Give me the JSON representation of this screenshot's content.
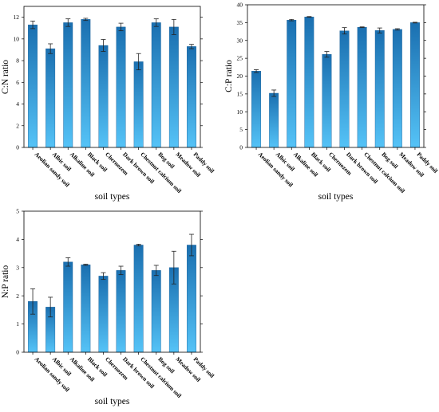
{
  "colors": {
    "bar_top": "#1a6fb0",
    "bar_bottom": "#55c3f7",
    "axis": "#000000"
  },
  "chart_data": [
    {
      "type": "bar",
      "categories": [
        "Aeolian sandy soil",
        "Albic soil",
        "Alkaline soil",
        "Black soil",
        "Chernozem",
        "Dark brown soil",
        "Chestnut calcium soil",
        "Bog soil",
        "Meadow soil",
        "Paddy soil"
      ],
      "values": [
        11.3,
        9.1,
        11.5,
        11.8,
        9.4,
        11.1,
        7.9,
        11.5,
        11.1,
        9.3
      ],
      "errors": [
        0.35,
        0.45,
        0.35,
        0.1,
        0.55,
        0.35,
        0.75,
        0.35,
        0.7,
        0.2
      ],
      "xlabel": "soil types",
      "ylabel": "C:N ratio",
      "ylim": [
        0,
        13
      ],
      "yticks": [
        0,
        2,
        4,
        6,
        8,
        10,
        12
      ],
      "grid": false
    },
    {
      "type": "bar",
      "categories": [
        "Aeolian sandy soil",
        "Albic soil",
        "Alkaline soil",
        "Black soil",
        "Chernozem",
        "Dark brown soil",
        "Chestnut calcium soil",
        "Bog soil",
        "Meadow soil",
        "Paddy soil"
      ],
      "values": [
        21.4,
        15.2,
        35.7,
        36.6,
        26.1,
        32.7,
        33.7,
        32.8,
        33.1,
        35.0
      ],
      "errors": [
        0.4,
        0.9,
        0.2,
        0.1,
        0.8,
        0.9,
        0.1,
        0.7,
        0.2,
        0.1
      ],
      "xlabel": "soil types",
      "ylabel": "C:P ratio",
      "ylim": [
        0,
        40
      ],
      "yticks": [
        0,
        5,
        10,
        15,
        20,
        25,
        30,
        35,
        40
      ],
      "grid": false
    },
    {
      "type": "bar",
      "categories": [
        "Aeolian sandy soil",
        "Albic soil",
        "Alkaline soil",
        "Black soil",
        "Chernozem",
        "Dark brown soil",
        "Chestnut calcium soil",
        "Bog soil",
        "Meadow soil",
        "Paddy soil"
      ],
      "values": [
        1.8,
        1.6,
        3.2,
        3.1,
        2.7,
        2.9,
        3.8,
        2.9,
        3.0,
        3.8
      ],
      "errors": [
        0.45,
        0.35,
        0.15,
        0.02,
        0.12,
        0.15,
        0.03,
        0.18,
        0.58,
        0.38
      ],
      "xlabel": "soil types",
      "ylabel": "N:P ratio",
      "ylim": [
        0,
        5
      ],
      "yticks": [
        0,
        1,
        2,
        3,
        4,
        5
      ],
      "grid": false
    }
  ]
}
